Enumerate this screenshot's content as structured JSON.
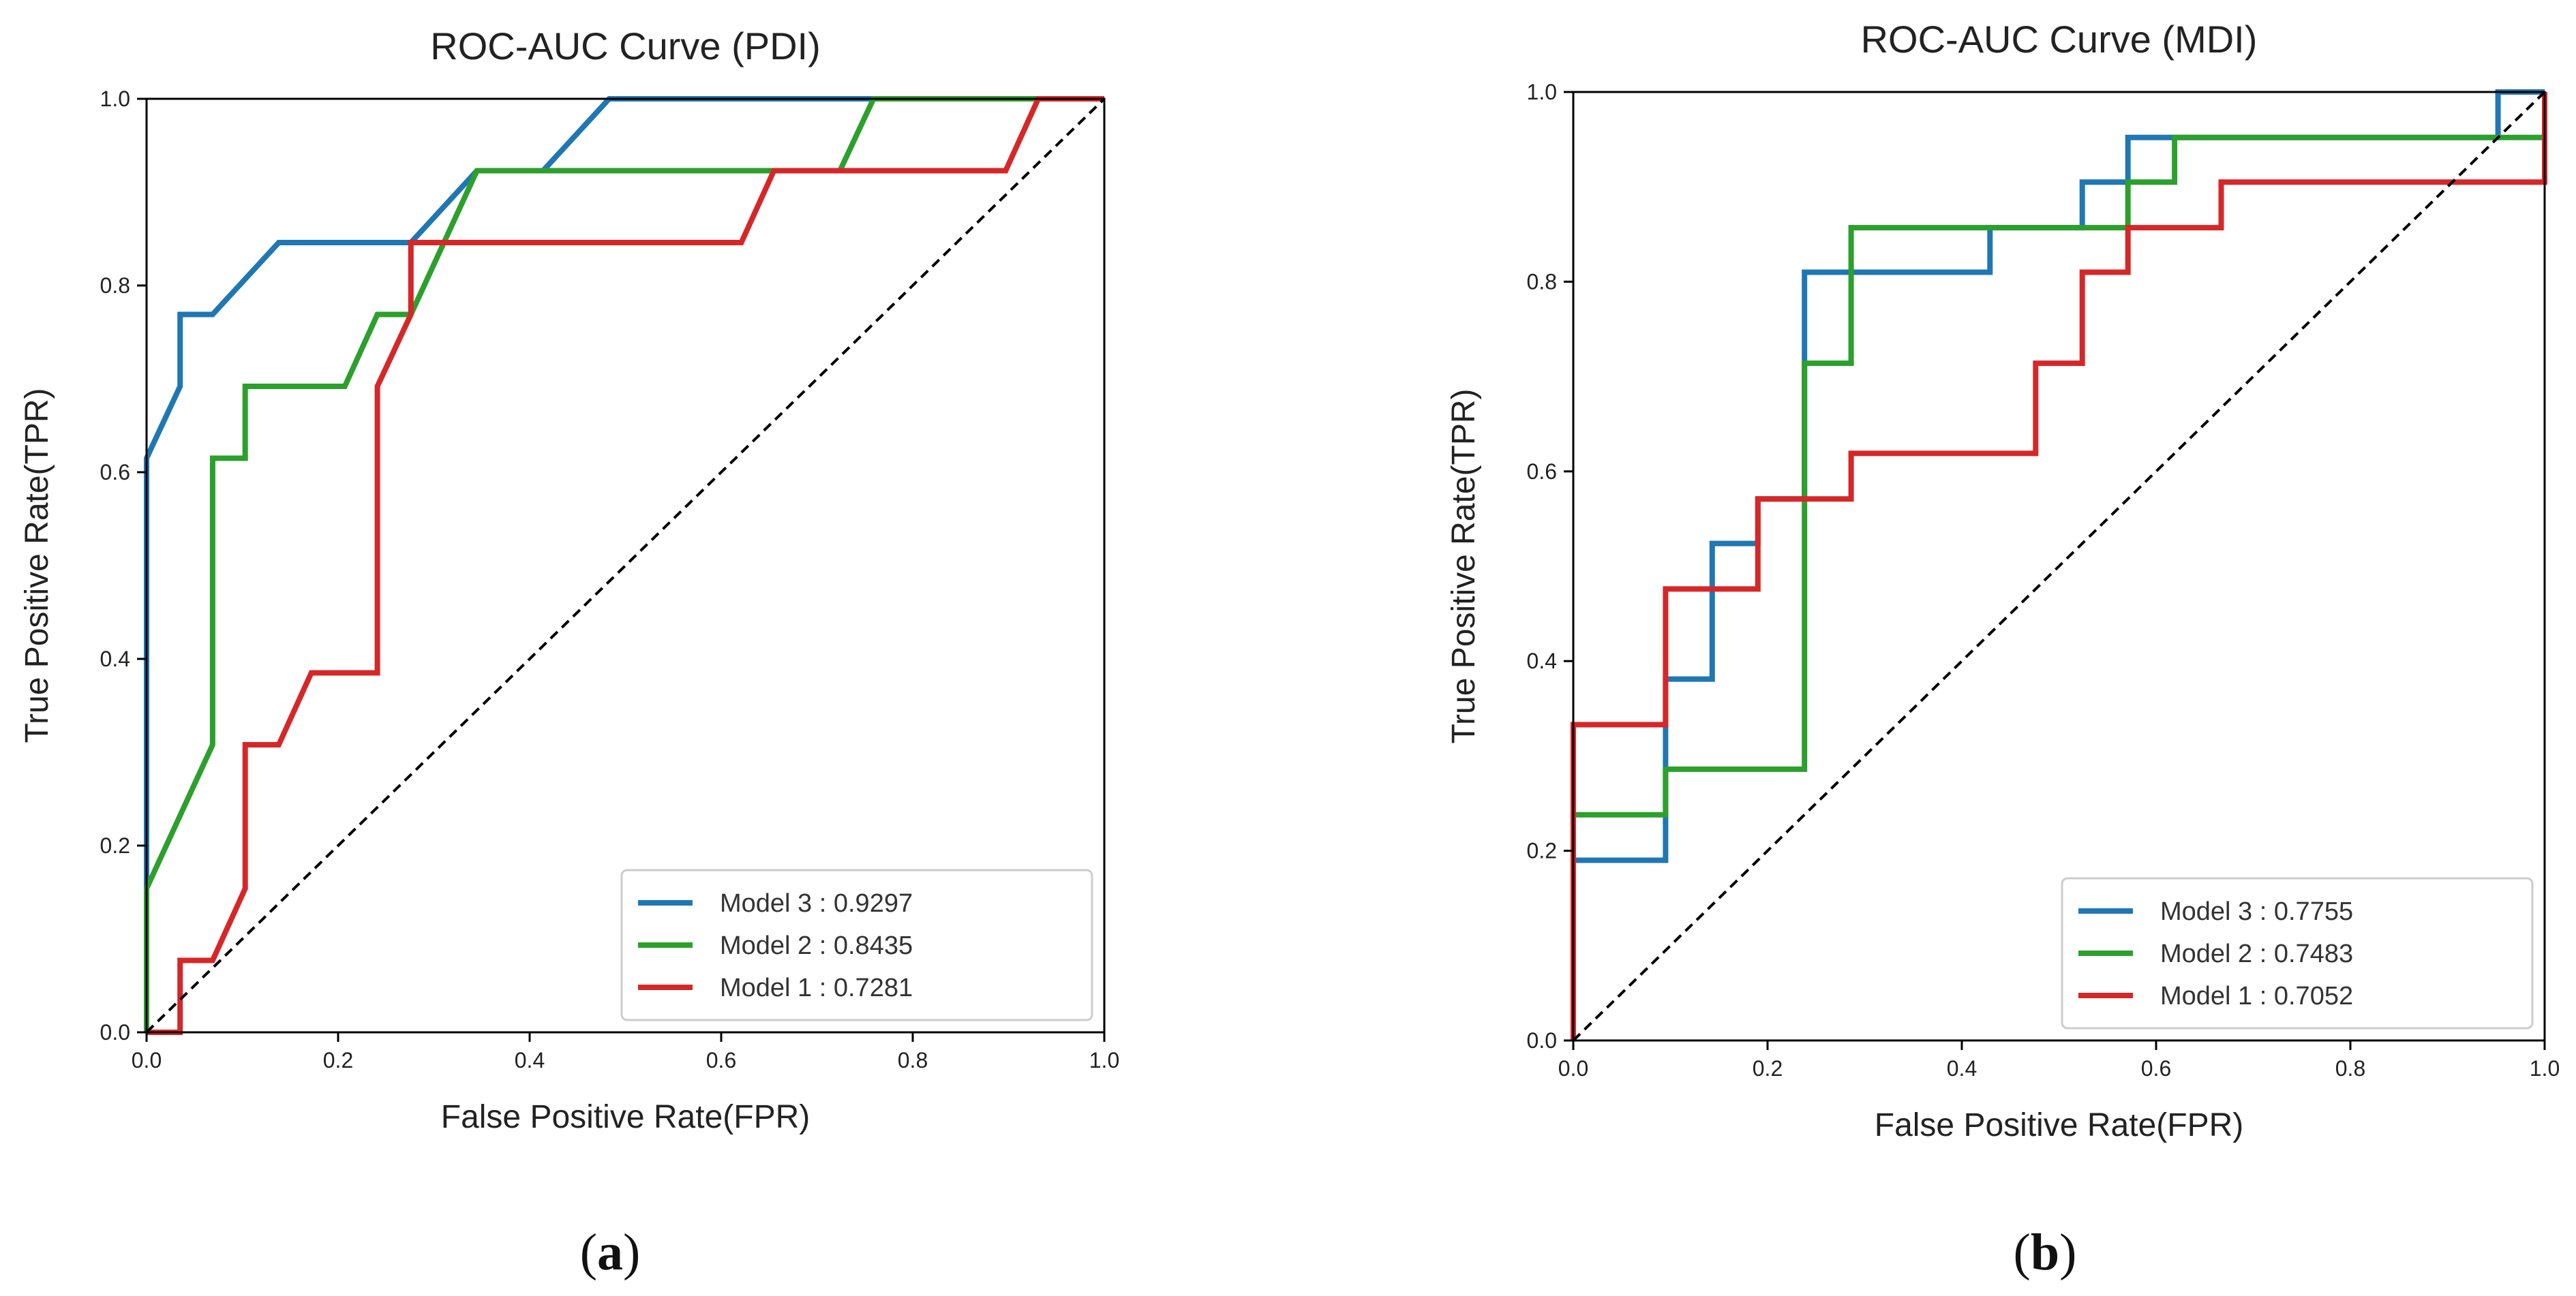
{
  "chart_data": [
    {
      "type": "line",
      "panel_label": "a",
      "title": "ROC-AUC Curve (PDI)",
      "xlabel": "False Positive Rate(FPR)",
      "ylabel": "True Positive Rate(TPR)",
      "xlim": [
        0,
        1
      ],
      "ylim": [
        0,
        1
      ],
      "xticks": [
        "0.0",
        "0.2",
        "0.4",
        "0.6",
        "0.8",
        "1.0"
      ],
      "yticks": [
        "0.0",
        "0.2",
        "0.4",
        "0.6",
        "0.8",
        "1.0"
      ],
      "grid": false,
      "legend_position": "lower-right",
      "series": [
        {
          "name": "Model 3 : 0.9297",
          "color": "#1f77b4",
          "x": [
            0,
            0,
            0.035,
            0.035,
            0.069,
            0.138,
            0.276,
            0.345,
            0.414,
            0.483,
            1.0
          ],
          "y": [
            0,
            0.615,
            0.692,
            0.769,
            0.769,
            0.846,
            0.846,
            0.923,
            0.923,
            1.0,
            1.0
          ]
        },
        {
          "name": "Model 2 : 0.8435",
          "color": "#2ca02c",
          "x": [
            0,
            0,
            0.069,
            0.069,
            0.103,
            0.103,
            0.207,
            0.241,
            0.276,
            0.345,
            0.724,
            0.759,
            1.0
          ],
          "y": [
            0,
            0.154,
            0.308,
            0.615,
            0.615,
            0.692,
            0.692,
            0.769,
            0.769,
            0.923,
            0.923,
            1.0,
            1.0
          ]
        },
        {
          "name": "Model 1 : 0.7281",
          "color": "#d62728",
          "x": [
            0,
            0.035,
            0.035,
            0.069,
            0.103,
            0.103,
            0.138,
            0.172,
            0.241,
            0.241,
            0.276,
            0.276,
            0.621,
            0.655,
            0.897,
            0.931,
            1.0
          ],
          "y": [
            0,
            0,
            0.077,
            0.077,
            0.154,
            0.308,
            0.308,
            0.385,
            0.385,
            0.692,
            0.769,
            0.846,
            0.846,
            0.923,
            0.923,
            1.0,
            1.0
          ]
        },
        {
          "name": "chance",
          "color": "#000000",
          "dashed": true,
          "x": [
            0,
            1
          ],
          "y": [
            0,
            1
          ]
        }
      ]
    },
    {
      "type": "line",
      "panel_label": "b",
      "title": "ROC-AUC Curve (MDI)",
      "xlabel": "False Positive Rate(FPR)",
      "ylabel": "True Positive Rate(TPR)",
      "xlim": [
        0,
        1
      ],
      "ylim": [
        0,
        1
      ],
      "xticks": [
        "0.0",
        "0.2",
        "0.4",
        "0.6",
        "0.8",
        "1.0"
      ],
      "yticks": [
        "0.0",
        "0.2",
        "0.4",
        "0.6",
        "0.8",
        "1.0"
      ],
      "grid": false,
      "legend_position": "lower-right",
      "series": [
        {
          "name": "Model 3 : 0.7755",
          "color": "#1f77b4",
          "x": [
            0,
            0,
            0.095,
            0.095,
            0.143,
            0.143,
            0.19,
            0.19,
            0.238,
            0.238,
            0.429,
            0.429,
            0.524,
            0.524,
            0.571,
            0.571,
            0.952,
            0.952,
            1.0
          ],
          "y": [
            0,
            0.19,
            0.19,
            0.381,
            0.381,
            0.524,
            0.524,
            0.571,
            0.571,
            0.81,
            0.81,
            0.857,
            0.857,
            0.905,
            0.905,
            0.952,
            0.952,
            1.0,
            1.0
          ]
        },
        {
          "name": "Model 2 : 0.7483",
          "color": "#2ca02c",
          "x": [
            0,
            0,
            0.095,
            0.095,
            0.238,
            0.238,
            0.286,
            0.286,
            0.571,
            0.571,
            0.619,
            0.619,
            1.0,
            1.0
          ],
          "y": [
            0,
            0.238,
            0.238,
            0.286,
            0.286,
            0.714,
            0.714,
            0.857,
            0.857,
            0.905,
            0.905,
            0.952,
            0.952,
            1.0
          ]
        },
        {
          "name": "Model 1 : 0.7052",
          "color": "#d62728",
          "x": [
            0,
            0,
            0.095,
            0.095,
            0.19,
            0.19,
            0.286,
            0.286,
            0.476,
            0.476,
            0.524,
            0.524,
            0.571,
            0.571,
            0.667,
            0.667,
            1.0,
            1.0
          ],
          "y": [
            0,
            0.333,
            0.333,
            0.476,
            0.476,
            0.571,
            0.571,
            0.619,
            0.619,
            0.714,
            0.714,
            0.81,
            0.81,
            0.857,
            0.857,
            0.905,
            0.905,
            1.0
          ]
        },
        {
          "name": "chance",
          "color": "#000000",
          "dashed": true,
          "x": [
            0,
            1
          ],
          "y": [
            0,
            1
          ]
        }
      ]
    }
  ]
}
